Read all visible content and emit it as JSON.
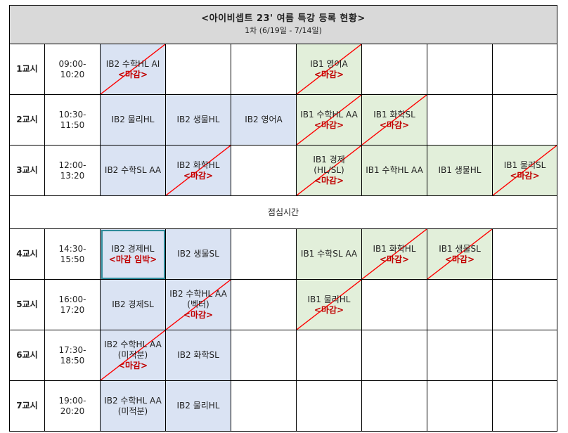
{
  "title": "<아이비셉트 23'  여름 특강 등록 현황>",
  "subtitle": "1차 (6/19일 - 7/14일)",
  "lunch_label": "점심시간",
  "closed_label": "<마감>",
  "closing_soon_label": "<마감 임박>",
  "colors": {
    "ib2_fill": "#dae3f3",
    "ib1_fill": "#e2efda",
    "closed_text": "#c00000",
    "strike": "#ff0000"
  },
  "periods": [
    {
      "label": "1교시",
      "time": "09:00-\n10:20"
    },
    {
      "label": "2교시",
      "time": "10:30-\n11:50"
    },
    {
      "label": "3교시",
      "time": "12:00-\n13:20"
    },
    {
      "label": "4교시",
      "time": "14:30-\n15:50"
    },
    {
      "label": "5교시",
      "time": "16:00-\n17:20"
    },
    {
      "label": "6교시",
      "time": "17:30-\n18:50"
    },
    {
      "label": "7교시",
      "time": "19:00-\n20:20"
    }
  ],
  "grid": [
    [
      {
        "text": "IB2 수학HL AI",
        "type": "ib2",
        "status": "closed"
      },
      {
        "text": "",
        "type": "empty"
      },
      {
        "text": "",
        "type": "empty"
      },
      {
        "text": "IB1 영어A",
        "type": "ib1",
        "status": "closed"
      },
      {
        "text": "",
        "type": "empty"
      },
      {
        "text": "",
        "type": "empty"
      },
      {
        "text": "",
        "type": "empty"
      }
    ],
    [
      {
        "text": "IB2 물리HL",
        "type": "ib2"
      },
      {
        "text": "IB2 생물HL",
        "type": "ib2"
      },
      {
        "text": "IB2 영어A",
        "type": "ib2"
      },
      {
        "text": "IB1 수학HL AA",
        "type": "ib1",
        "status": "closed"
      },
      {
        "text": "IB1 화학SL",
        "type": "ib1",
        "status": "closed"
      },
      {
        "text": "",
        "type": "empty"
      },
      {
        "text": "",
        "type": "empty"
      }
    ],
    [
      {
        "text": "IB2 수학SL AA",
        "type": "ib2"
      },
      {
        "text": "IB2 화학HL",
        "type": "ib2",
        "status": "closed"
      },
      {
        "text": "",
        "type": "empty"
      },
      {
        "text": "IB1 경제\n(HL/SL)",
        "type": "ib1",
        "status": "closed"
      },
      {
        "text": "IB1 수학HL AA",
        "type": "ib1"
      },
      {
        "text": "IB1 생물HL",
        "type": "ib1"
      },
      {
        "text": "IB1 물리SL",
        "type": "ib1",
        "status": "closed"
      }
    ],
    [
      {
        "text": "IB2 경제HL",
        "type": "ib2",
        "status": "soon",
        "selected": true
      },
      {
        "text": "IB2 생물SL",
        "type": "ib2"
      },
      {
        "text": "",
        "type": "empty"
      },
      {
        "text": "IB1 수학SL AA",
        "type": "ib1"
      },
      {
        "text": "IB1 화학HL",
        "type": "ib1",
        "status": "closed"
      },
      {
        "text": "IB1 생물SL",
        "type": "ib1",
        "status": "closed"
      },
      {
        "text": "",
        "type": "empty"
      }
    ],
    [
      {
        "text": "IB2 경제SL",
        "type": "ib2"
      },
      {
        "text": "IB2 수학HL AA\n(벡터)",
        "type": "ib2",
        "status": "closed"
      },
      {
        "text": "",
        "type": "empty"
      },
      {
        "text": "IB1 물리HL",
        "type": "ib1",
        "status": "closed"
      },
      {
        "text": "",
        "type": "empty"
      },
      {
        "text": "",
        "type": "empty"
      },
      {
        "text": "",
        "type": "empty"
      }
    ],
    [
      {
        "text": "IB2 수학HL AA\n(미적분)",
        "type": "ib2",
        "status": "closed"
      },
      {
        "text": "IB2 화학SL",
        "type": "ib2"
      },
      {
        "text": "",
        "type": "empty"
      },
      {
        "text": "",
        "type": "empty"
      },
      {
        "text": "",
        "type": "empty"
      },
      {
        "text": "",
        "type": "empty"
      },
      {
        "text": "",
        "type": "empty"
      }
    ],
    [
      {
        "text": "IB2 수학HL AA\n(미적분)",
        "type": "ib2"
      },
      {
        "text": "IB2 물리HL",
        "type": "ib2"
      },
      {
        "text": "",
        "type": "empty"
      },
      {
        "text": "",
        "type": "empty"
      },
      {
        "text": "",
        "type": "empty"
      },
      {
        "text": "",
        "type": "empty"
      },
      {
        "text": "",
        "type": "empty"
      }
    ]
  ]
}
